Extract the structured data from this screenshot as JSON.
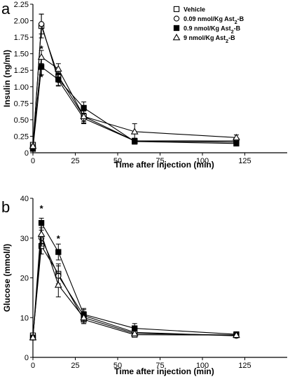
{
  "chart_data": [
    {
      "panel": "a",
      "type": "line",
      "xlabel": "Time after injection (min)",
      "ylabel": "Insulin (ng/ml)",
      "xlim": [
        0,
        150
      ],
      "ylim": [
        0,
        2.25
      ],
      "xticks": [
        0,
        25,
        50,
        75,
        100,
        125
      ],
      "xtick_labels": [
        "0",
        "25",
        "50",
        "75",
        "100",
        "125"
      ],
      "yticks": [
        0,
        0.25,
        0.5,
        0.75,
        1.0,
        1.25,
        1.5,
        1.75,
        2.0,
        2.25
      ],
      "ytick_labels": [
        "0",
        "0.25",
        "0.50",
        "0.75",
        "1.00",
        "1.25",
        "1.50",
        "1.75",
        "2.00",
        "2.25"
      ],
      "legend_position": "top-right",
      "legend_labels": [
        "Vehicle",
        "0.09 nmol/Kg Ast",
        "0.9 nmol/Kg Ast",
        "9 nmol/Kg Ast"
      ],
      "legend_subscript": "2",
      "legend_suffix": "-B",
      "series": [
        {
          "name": "Vehicle",
          "marker": "square-open",
          "x": [
            0,
            5,
            15,
            30,
            60,
            120
          ],
          "y": [
            0.12,
            1.92,
            1.16,
            0.55,
            0.18,
            0.18
          ],
          "err": [
            0.03,
            0.18,
            0.08,
            0.08,
            0.04,
            0.04
          ]
        },
        {
          "name": "0.09 nmol/Kg Ast2-B",
          "marker": "circle-open",
          "x": [
            0,
            5,
            15,
            30,
            60,
            120
          ],
          "y": [
            0.08,
            1.95,
            1.1,
            0.52,
            0.18,
            0.16
          ],
          "err": [
            0.03,
            0.15,
            0.08,
            0.08,
            0.04,
            0.03
          ]
        },
        {
          "name": "0.9 nmol/Kg Ast2-B",
          "marker": "square-filled",
          "x": [
            0,
            5,
            15,
            30,
            60,
            120
          ],
          "y": [
            0.06,
            1.3,
            1.11,
            0.68,
            0.17,
            0.14
          ],
          "err": [
            0.02,
            0.12,
            0.1,
            0.09,
            0.04,
            0.03
          ]
        },
        {
          "name": "9 nmol/Kg Ast2-B",
          "marker": "triangle-open",
          "x": [
            0,
            5,
            15,
            30,
            60,
            120
          ],
          "y": [
            0.1,
            1.45,
            1.27,
            0.55,
            0.32,
            0.23
          ],
          "err": [
            0.03,
            0.1,
            0.08,
            0.1,
            0.12,
            0.04
          ]
        }
      ],
      "annotations": [
        {
          "text": "*",
          "x": 5,
          "y": 1.58
        },
        {
          "text": "*",
          "x": 5,
          "y": 1.15
        }
      ]
    },
    {
      "panel": "b",
      "type": "line",
      "xlabel": "Time after injection (min)",
      "ylabel": "Glucose (mmol/l)",
      "xlim": [
        0,
        150
      ],
      "ylim": [
        0,
        40
      ],
      "xticks": [
        0,
        25,
        50,
        75,
        100,
        125
      ],
      "xtick_labels": [
        "0",
        "25",
        "50",
        "75",
        "100",
        "125"
      ],
      "yticks": [
        0,
        10,
        20,
        30,
        40
      ],
      "ytick_labels": [
        "0",
        "10",
        "20",
        "30",
        "40"
      ],
      "series": [
        {
          "name": "Vehicle",
          "marker": "square-open",
          "x": [
            0,
            5,
            15,
            30,
            60,
            120
          ],
          "y": [
            5.5,
            28.0,
            21.0,
            9.5,
            5.7,
            5.6
          ],
          "err": [
            0.5,
            2.0,
            2.5,
            1.0,
            0.5,
            0.4
          ]
        },
        {
          "name": "0.09 nmol/Kg Ast2-B",
          "marker": "circle-open",
          "x": [
            0,
            5,
            15,
            30,
            60,
            120
          ],
          "y": [
            5.0,
            30.0,
            20.5,
            10.5,
            6.3,
            5.4
          ],
          "err": [
            0.5,
            2.0,
            2.5,
            1.5,
            0.5,
            0.4
          ]
        },
        {
          "name": "0.9 nmol/Kg Ast2-B",
          "marker": "square-filled",
          "x": [
            0,
            5,
            15,
            30,
            60,
            120
          ],
          "y": [
            5.0,
            33.8,
            26.5,
            10.8,
            7.3,
            5.8
          ],
          "err": [
            0.5,
            1.2,
            2.0,
            1.5,
            1.2,
            0.4
          ]
        },
        {
          "name": "9 nmol/Kg Ast2-B",
          "marker": "triangle-open",
          "x": [
            0,
            5,
            15,
            30,
            60,
            120
          ],
          "y": [
            5.0,
            31.0,
            18.2,
            10.0,
            6.0,
            5.6
          ],
          "err": [
            0.5,
            2.5,
            3.0,
            1.5,
            0.6,
            0.4
          ]
        }
      ],
      "annotations": [
        {
          "text": "*",
          "x": 5,
          "y": 37.5
        },
        {
          "text": "*",
          "x": 15,
          "y": 30.0
        }
      ]
    }
  ]
}
